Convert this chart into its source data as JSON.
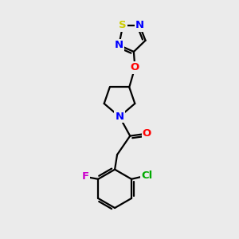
{
  "bg_color": "#ebebeb",
  "bond_color": "#000000",
  "bond_width": 1.6,
  "atom_colors": {
    "N": "#0000ff",
    "O": "#ff0000",
    "S": "#cccc00",
    "F": "#cc00cc",
    "Cl": "#00aa00",
    "C": "#000000"
  },
  "font_size": 9.5
}
